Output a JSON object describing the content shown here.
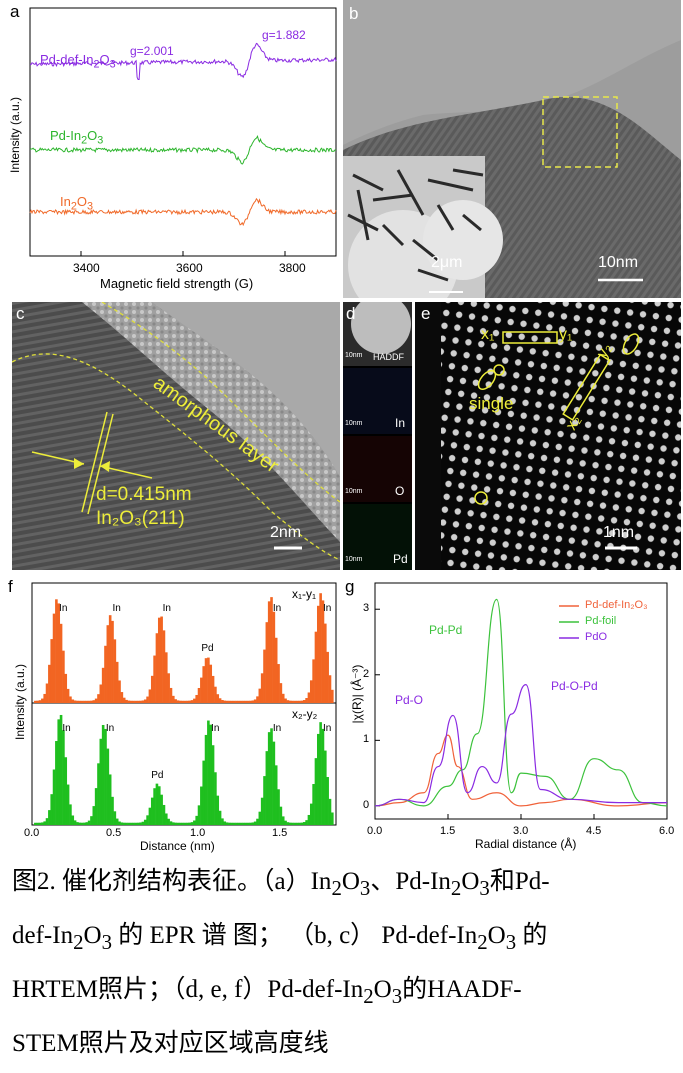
{
  "panels": {
    "a": {
      "tag": "a",
      "xlabel": "Magnetic field strength (G)",
      "ylabel": "Intensity (a.u.)",
      "xticks": [
        "3400",
        "3600",
        "3800"
      ],
      "g_left": "g=2.001",
      "g_right": "g=1.882",
      "series": [
        {
          "name_main": "Pd-def-In",
          "name_sub": "2",
          "name_tail": "O",
          "name_sub2": "3",
          "color": "#8a2be2"
        },
        {
          "name_main": "Pd-In",
          "name_sub": "2",
          "name_tail": "O",
          "name_sub2": "3",
          "color": "#2db52d"
        },
        {
          "name_main": "In",
          "name_sub": "2",
          "name_tail": "O",
          "name_sub2": "3",
          "color": "#f06a2a"
        }
      ]
    },
    "b": {
      "tag": "b",
      "inset_scale": "2μm",
      "main_scale": "10nm"
    },
    "c": {
      "tag": "c",
      "layer_label": "amorphous layer",
      "d_label": "d=0.415nm",
      "plane_label": "In₂O₃(211)",
      "scale": "2nm"
    },
    "d": {
      "tag": "d",
      "scale": "10nm",
      "maps": [
        "HADDF",
        "In",
        "O",
        "Pd"
      ]
    },
    "e": {
      "tag": "e",
      "x1": "x₁",
      "y1": "y₁",
      "x2": "x₂",
      "y2": "y₂",
      "single": "single",
      "scale": "1nm"
    },
    "f": {
      "tag": "f",
      "ylabel": "Intensity (a.u.)",
      "xlabel": "Distance (nm)",
      "xticks": [
        "0.0",
        "0.5",
        "1.0",
        "1.5"
      ],
      "top_title": "x₁-y₁",
      "bottom_title": "x₂-y₂",
      "top_labels": [
        "In",
        "In",
        "In",
        "Pd",
        "In",
        "In"
      ],
      "bottom_labels": [
        "In",
        "In",
        "Pd",
        "In",
        "In",
        "In"
      ],
      "top_color": "#f26522",
      "bottom_color": "#1fbf1f"
    },
    "g": {
      "tag": "g",
      "ylabel": "|χ(R)| (Å⁻³)",
      "xlabel": "Radial distance (Å)",
      "xticks": [
        "0.0",
        "1.5",
        "3.0",
        "4.5",
        "6.0"
      ],
      "yticks": [
        "0",
        "1",
        "2",
        "3"
      ],
      "legend": [
        "Pd-def-In₂O₃",
        "Pd-foil",
        "PdO"
      ],
      "colors": [
        "#f0623a",
        "#3cc23c",
        "#8a2be2"
      ],
      "annotations": {
        "pdpd": "Pd-Pd",
        "pdo": "Pd-O",
        "pdopd": "Pd-O-Pd"
      }
    }
  },
  "caption": {
    "line1_a": "图2. 催化剂结构表征。（a）In",
    "line1_b": "O",
    "line1_c": "、Pd-In",
    "line1_d": "O",
    "line1_e": "和Pd-",
    "line2_a": "def-In",
    "line2_b": "O",
    "line2_c": " 的 EPR 谱 图； （b, c） Pd-def-In",
    "line2_d": "O",
    "line2_e": " 的",
    "line3_a": "HRTEM照片；（d, e, f）Pd-def-In",
    "line3_b": "O",
    "line3_c": "的HAADF-",
    "line4": "STEM照片及对应区域高度线",
    "sub2": "2",
    "sub3": "3"
  },
  "chart_data": [
    {
      "type": "line",
      "title": "",
      "xlabel": "Magnetic field strength (G)",
      "ylabel": "Intensity (a.u.)",
      "xlim": [
        3300,
        3900
      ],
      "series": [
        {
          "name": "Pd-def-In2O3",
          "signal_center": 3730,
          "g": 1.882
        },
        {
          "name": "Pd-In2O3",
          "signal_center": 3730
        },
        {
          "name": "In2O3",
          "signal_center": 3730
        }
      ]
    },
    {
      "type": "bar",
      "xlabel": "Distance (nm)",
      "ylabel": "Intensity (a.u.)",
      "series": [
        {
          "name": "x1-y1",
          "peaks_x": [
            0.15,
            0.47,
            0.77,
            1.05,
            1.43,
            1.73
          ],
          "labels": [
            "In",
            "In",
            "In",
            "Pd",
            "In",
            "In"
          ],
          "rel_height": [
            0.93,
            0.78,
            0.78,
            0.4,
            0.95,
            0.98
          ]
        },
        {
          "name": "x2-y2",
          "peaks_x": [
            0.17,
            0.43,
            0.75,
            1.06,
            1.43,
            1.73
          ],
          "labels": [
            "In",
            "In",
            "Pd",
            "In",
            "In",
            "In"
          ],
          "rel_height": [
            0.97,
            0.88,
            0.35,
            0.92,
            0.85,
            0.9
          ]
        }
      ]
    },
    {
      "type": "line",
      "xlabel": "Radial distance (Å)",
      "ylabel": "|χ(R)| (Å⁻³)",
      "xlim": [
        0,
        6
      ],
      "ylim": [
        -0.2,
        3.4
      ],
      "series": [
        {
          "name": "Pd-def-In2O3",
          "x": [
            0.0,
            0.5,
            1.0,
            1.3,
            1.5,
            1.7,
            2.0,
            2.5,
            3.0,
            3.5,
            4.0,
            5.0,
            6.0
          ],
          "y": [
            0.0,
            0.05,
            0.2,
            0.8,
            1.08,
            0.6,
            0.1,
            0.2,
            0.0,
            0.05,
            0.1,
            0.0,
            0.05
          ]
        },
        {
          "name": "Pd-foil",
          "x": [
            0.0,
            0.5,
            1.0,
            1.5,
            1.8,
            2.1,
            2.5,
            2.8,
            3.0,
            3.5,
            4.0,
            4.5,
            5.0,
            5.5,
            6.0
          ],
          "y": [
            0.0,
            0.1,
            0.0,
            0.3,
            0.55,
            1.1,
            3.15,
            0.2,
            0.5,
            0.45,
            0.1,
            0.72,
            0.55,
            0.05,
            0.0
          ]
        },
        {
          "name": "PdO",
          "x": [
            0.0,
            0.5,
            1.0,
            1.3,
            1.6,
            1.9,
            2.2,
            2.5,
            2.8,
            3.1,
            3.4,
            4.0,
            5.0,
            6.0
          ],
          "y": [
            0.0,
            0.1,
            0.05,
            0.6,
            1.38,
            0.2,
            0.6,
            0.35,
            1.4,
            1.85,
            0.25,
            0.1,
            0.05,
            0.05
          ]
        }
      ]
    }
  ]
}
